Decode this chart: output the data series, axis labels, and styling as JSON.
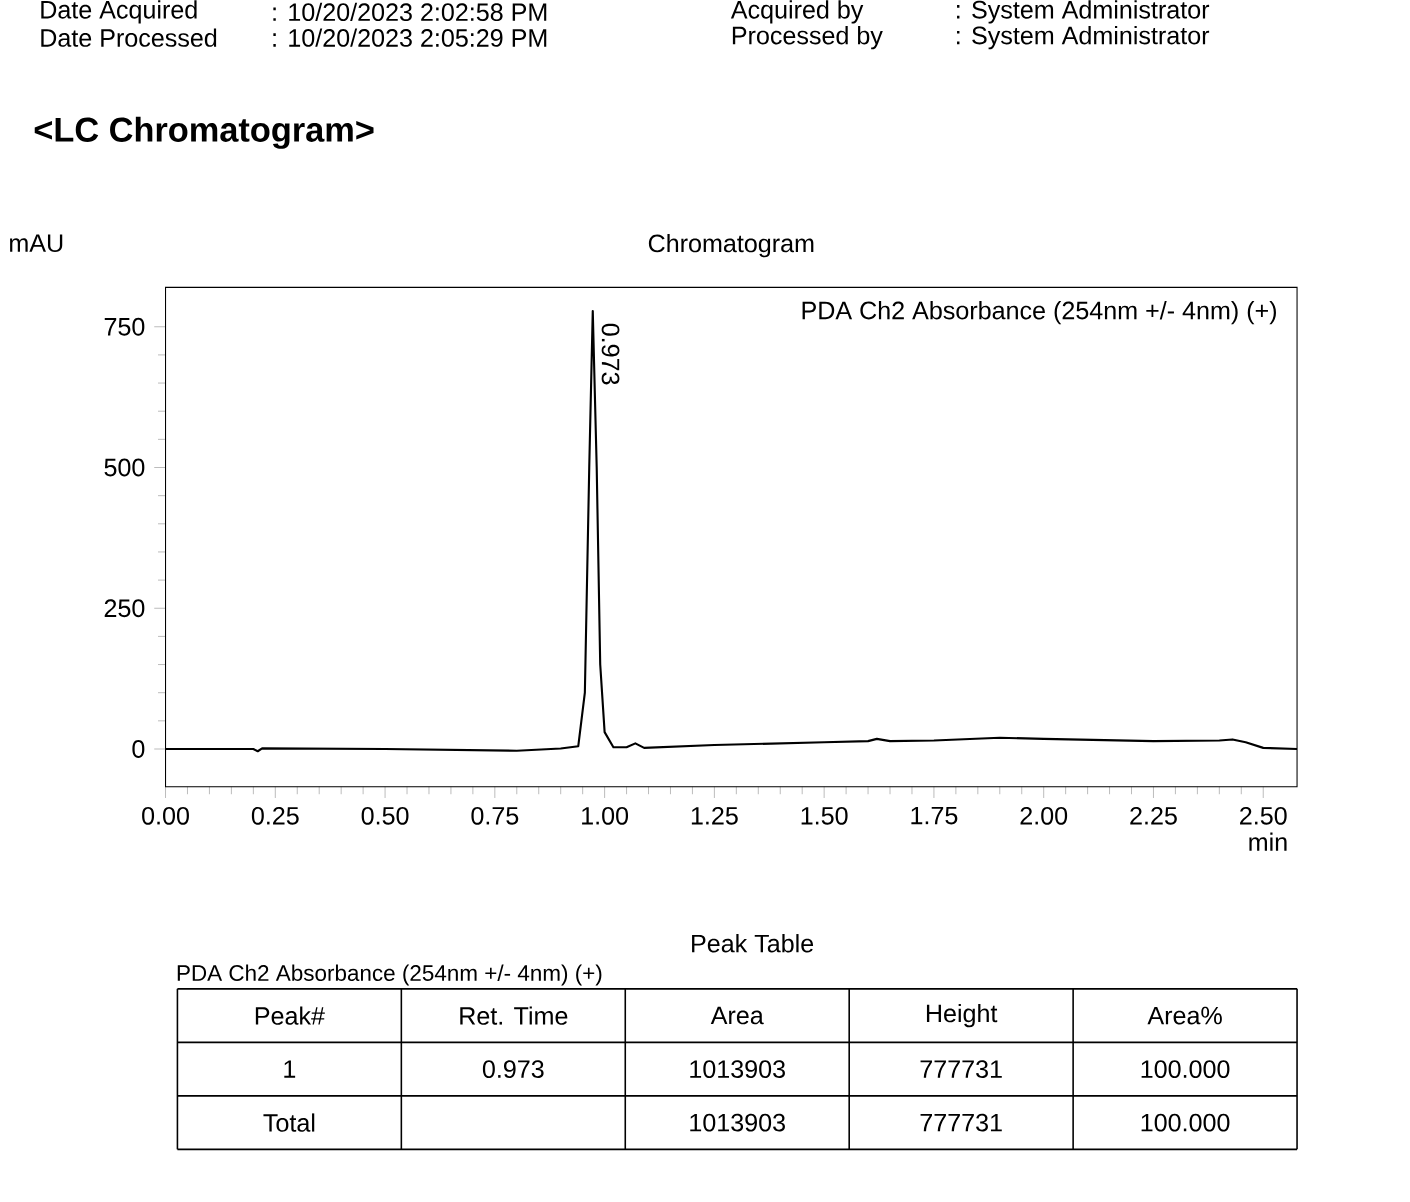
{
  "chart_data": {
    "type": "line",
    "title": "Chromatogram",
    "xlabel": "min",
    "ylabel": "mAU",
    "x": [
      0,
      0.2,
      0.21,
      0.22,
      0.5,
      0.8,
      0.9,
      0.94,
      0.955,
      0.965,
      0.973,
      0.982,
      0.99,
      1.0,
      1.02,
      1.05,
      1.07,
      1.09,
      1.25,
      1.5,
      1.6,
      1.62,
      1.65,
      1.75,
      1.9,
      2.0,
      2.25,
      2.4,
      2.43,
      2.46,
      2.5,
      2.577
    ],
    "series": [
      {
        "name": "PDA Ch2 Absorbance (254nm +/- 4nm) (+)",
        "color": "#000000",
        "values": [
          0,
          0,
          -4,
          1,
          0,
          -3,
          1,
          5,
          100,
          500,
          778,
          500,
          150,
          30,
          3,
          3,
          10,
          2,
          7,
          12,
          14,
          18,
          14,
          15,
          20,
          18,
          14,
          15,
          17,
          12,
          2,
          0
        ]
      }
    ],
    "xlim": [
      0,
      2.577
    ],
    "ylim": [
      -67,
      820
    ],
    "xticks": [
      {
        "value": 0,
        "label": "0.00"
      },
      {
        "value": 0.25,
        "label": "0.25"
      },
      {
        "value": 0.5,
        "label": "0.50"
      },
      {
        "value": 0.75,
        "label": "0.75"
      },
      {
        "value": 1,
        "label": "1.00"
      },
      {
        "value": 1.25,
        "label": "1.25"
      },
      {
        "value": 1.5,
        "label": "1.50"
      },
      {
        "value": 1.75,
        "label": "1.75"
      },
      {
        "value": 2,
        "label": "2.00"
      },
      {
        "value": 2.25,
        "label": "2.25"
      },
      {
        "value": 2.5,
        "label": "2.50"
      }
    ],
    "yticks": [
      0,
      250,
      500,
      750
    ],
    "legend": "top right",
    "grid": false,
    "marker": "none",
    "line_style": "solid",
    "annotations": [
      "Date Acquired",
      ": 10/20/2023 2:02:58 PM",
      "Acquired by",
      ": System Administrator",
      "Date Processed",
      ": 10/20/2023 2:05:29 PM",
      "Processed by",
      ": System Administrator",
      "<LC Chromatogram>",
      "Peak Table",
      "PDA Ch2 Absorbance (254nm +/- 4nm) (+)",
      "Peak#",
      "Ret. Time",
      "Area",
      "Height",
      "Area%",
      "1",
      "0.973",
      "1013903",
      "777731",
      "100.000",
      "Total",
      "1013903",
      "777731",
      "100.000",
      {
        "text": "0.973",
        "x": 0.973,
        "y": 777.7
      }
    ]
  }
}
